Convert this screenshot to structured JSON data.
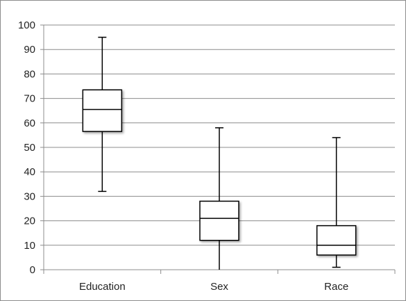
{
  "chart_data": {
    "type": "boxplot",
    "title": "",
    "xlabel": "",
    "ylabel": "",
    "ylim": [
      0,
      100
    ],
    "yticks": [
      0,
      10,
      20,
      30,
      40,
      50,
      60,
      70,
      80,
      90,
      100
    ],
    "grid": true,
    "legend": "none",
    "categories": [
      "Education",
      "Sex",
      "Race"
    ],
    "boxes": [
      {
        "category": "Education",
        "min": 32,
        "q1": 56.5,
        "median": 65.5,
        "q3": 73.5,
        "max": 95
      },
      {
        "category": "Sex",
        "min": 0,
        "q1": 12,
        "median": 21,
        "q3": 28,
        "max": 58
      },
      {
        "category": "Race",
        "min": 1,
        "q1": 6,
        "median": 10,
        "q3": 18,
        "max": 54
      }
    ]
  },
  "colors": {
    "grid": "#8c8c8c",
    "axis": "#8c8c8c",
    "box_stroke": "#000000",
    "box_fill": "#ffffff",
    "text": "#222222"
  }
}
